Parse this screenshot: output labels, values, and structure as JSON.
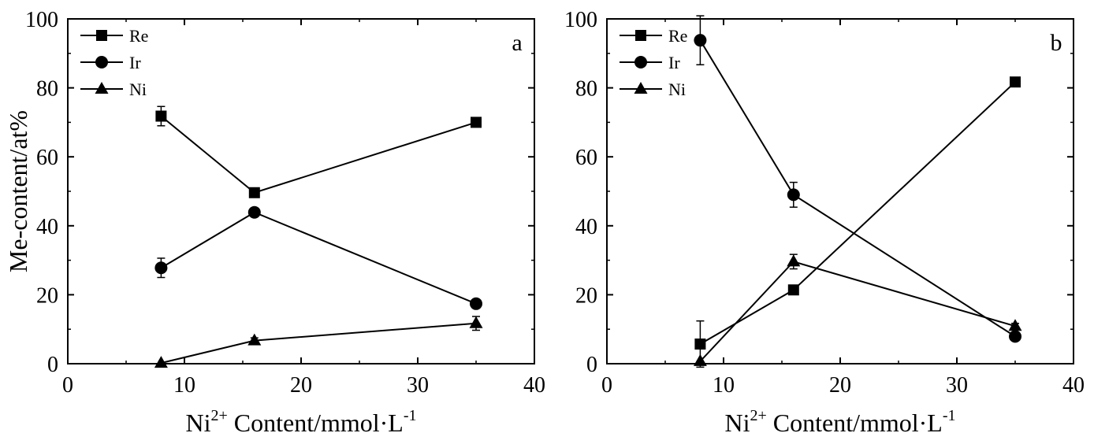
{
  "chart_data": [
    {
      "type": "line",
      "panel_label": "a",
      "xlabel": "Ni2+ Content/mmol·L-1",
      "xlabel_parts": {
        "pre": "Ni",
        "sup": "2+",
        "mid": " Content/mmol·L",
        "sup2": "-1"
      },
      "ylabel": "Me-content/at%",
      "xlim": [
        0,
        40
      ],
      "ylim": [
        0,
        100
      ],
      "xticks": [
        0,
        10,
        20,
        30,
        40
      ],
      "yticks": [
        0,
        20,
        40,
        60,
        80,
        100
      ],
      "xticklabels": [
        "0",
        "10",
        "20",
        "30",
        "40"
      ],
      "yticklabels": [
        "0",
        "20",
        "40",
        "60",
        "80",
        "100"
      ],
      "legend_position": "top-left",
      "grid": false,
      "x": [
        8,
        16,
        35
      ],
      "series": [
        {
          "name": "Re",
          "marker": "square",
          "values": [
            71.8,
            49.6,
            70.0
          ],
          "errors": [
            2.8,
            0.8,
            0.8
          ]
        },
        {
          "name": "Ir",
          "marker": "circle",
          "values": [
            27.8,
            43.9,
            17.4
          ],
          "errors": [
            2.8,
            0.8,
            0.8
          ]
        },
        {
          "name": "Ni",
          "marker": "triangle",
          "values": [
            0.2,
            6.7,
            11.7
          ],
          "errors": [
            0,
            0.8,
            2.0
          ]
        }
      ]
    },
    {
      "type": "line",
      "panel_label": "b",
      "xlabel": "Ni2+ Content/mmol·L-1",
      "xlabel_parts": {
        "pre": "Ni",
        "sup": "2+",
        "mid": " Content/mmol·L",
        "sup2": "-1"
      },
      "ylabel": "",
      "xlim": [
        0,
        40
      ],
      "ylim": [
        0,
        100
      ],
      "xticks": [
        0,
        10,
        20,
        30,
        40
      ],
      "yticks": [
        0,
        20,
        40,
        60,
        80,
        100
      ],
      "xticklabels": [
        "0",
        "10",
        "20",
        "30",
        "40"
      ],
      "yticklabels": [
        "0",
        "20",
        "40",
        "60",
        "80",
        "100"
      ],
      "legend_position": "top-left",
      "grid": false,
      "x": [
        8,
        16,
        35
      ],
      "series": [
        {
          "name": "Re",
          "marker": "square",
          "values": [
            5.7,
            21.4,
            81.7
          ],
          "errors": [
            6.7,
            0.8,
            1.0
          ]
        },
        {
          "name": "Ir",
          "marker": "circle",
          "values": [
            93.8,
            49.0,
            7.9
          ],
          "errors": [
            7.1,
            3.6,
            0.8
          ]
        },
        {
          "name": "Ni",
          "marker": "triangle",
          "values": [
            0.7,
            29.6,
            10.9
          ],
          "errors": [
            0,
            2.1,
            0.8
          ]
        }
      ]
    }
  ]
}
